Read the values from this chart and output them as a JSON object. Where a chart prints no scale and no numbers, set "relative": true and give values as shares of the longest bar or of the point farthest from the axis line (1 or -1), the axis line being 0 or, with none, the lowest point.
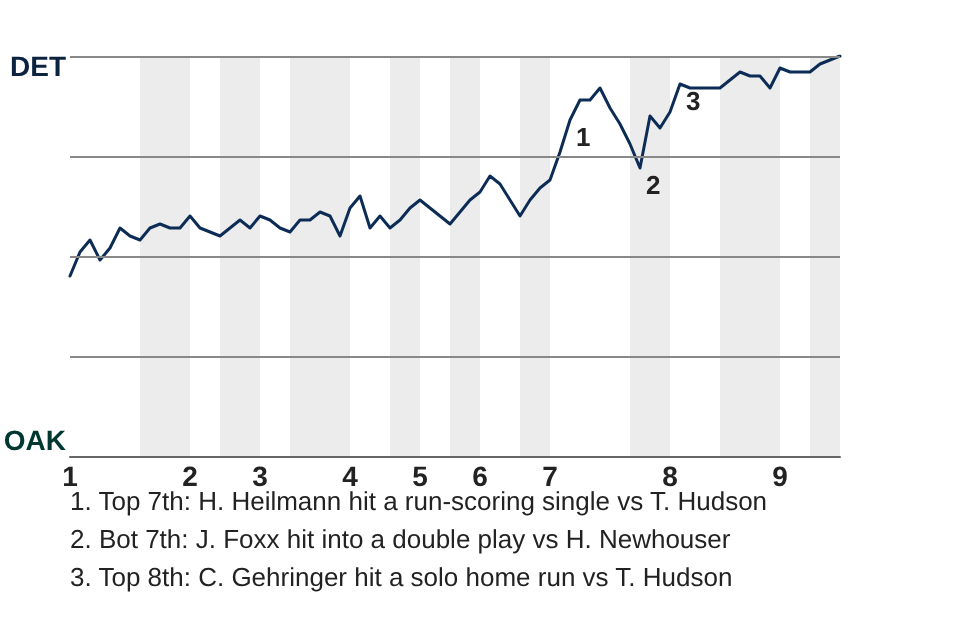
{
  "chart_data": {
    "type": "line",
    "relative": true,
    "categories": [
      "1",
      null,
      null,
      null,
      null,
      null,
      null,
      null,
      null,
      null,
      null,
      null,
      "2",
      null,
      null,
      null,
      null,
      null,
      null,
      "3",
      null,
      null,
      null,
      null,
      null,
      null,
      null,
      null,
      "4",
      null,
      null,
      null,
      null,
      null,
      null,
      "5",
      null,
      null,
      null,
      null,
      null,
      "6",
      null,
      null,
      null,
      null,
      null,
      null,
      "7",
      null,
      null,
      null,
      null,
      null,
      null,
      null,
      null,
      null,
      null,
      null,
      "8",
      null,
      null,
      null,
      null,
      null,
      null,
      null,
      null,
      null,
      null,
      "9",
      null,
      null,
      null,
      null,
      null,
      null
    ],
    "series": [
      {
        "color": "#0c2c56",
        "values": [
          0.45,
          0.51,
          0.54,
          0.49,
          0.52,
          0.57,
          0.55,
          0.54,
          0.57,
          0.58,
          0.57,
          0.57,
          0.6,
          0.57,
          0.56,
          0.55,
          0.57,
          0.59,
          0.57,
          0.6,
          0.59,
          0.57,
          0.56,
          0.59,
          0.59,
          0.61,
          0.6,
          0.55,
          0.62,
          0.65,
          0.57,
          0.6,
          0.57,
          0.59,
          0.62,
          0.64,
          0.62,
          0.6,
          0.58,
          0.61,
          0.64,
          0.66,
          0.7,
          0.68,
          0.64,
          0.6,
          0.64,
          0.67,
          0.69,
          0.76,
          0.84,
          0.89,
          0.89,
          0.92,
          0.87,
          0.83,
          0.78,
          0.72,
          0.85,
          0.82,
          0.86,
          0.93,
          0.92,
          0.92,
          0.92,
          0.92,
          0.94,
          0.96,
          0.95,
          0.95,
          0.92,
          0.97,
          0.96,
          0.96,
          0.96,
          0.98,
          0.99,
          1.0
        ]
      }
    ],
    "marker": "none",
    "line_style": "solid",
    "ref_lines": [
      {
        "axis": "y",
        "value": 1,
        "color": "#888888"
      },
      {
        "axis": "y",
        "value": 0.75,
        "color": "#888888"
      },
      {
        "axis": "y",
        "value": 0.5,
        "color": "#888888"
      },
      {
        "axis": "y",
        "value": 0.25,
        "color": "#888888"
      }
    ],
    "annotations": [
      "DET",
      "OAK",
      "1",
      "2",
      "3",
      "1. Top 7th: H. Heilmann hit a run-scoring single vs T. Hudson",
      "2. Bot 7th: J. Foxx hit into a double play vs H. Newhouser",
      "3. Top 8th: C. Gehringer hit a solo home run vs T. Hudson"
    ]
  }
}
